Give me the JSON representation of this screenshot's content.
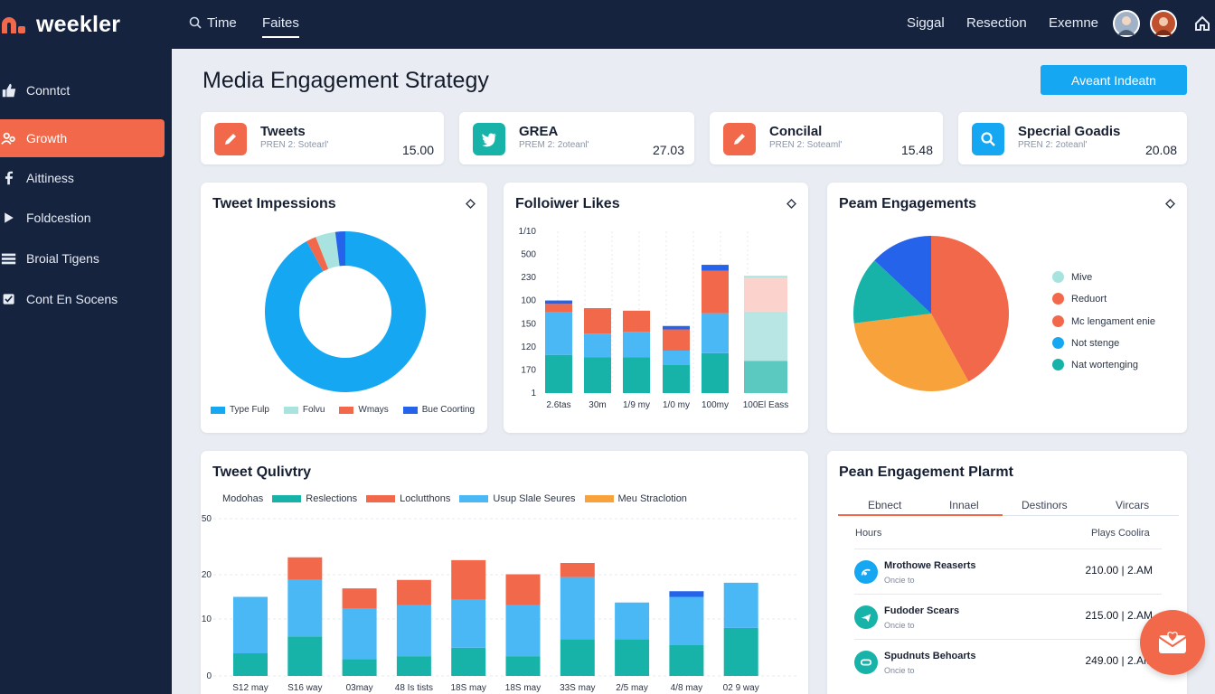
{
  "brand": {
    "name": "weekler",
    "accent": "#f2684a",
    "topbar_bg": "#15233f"
  },
  "nav": {
    "items": [
      {
        "label": "Time",
        "icon": "search-icon"
      },
      {
        "label": "Faites",
        "active": true
      },
      {
        "label": "Siggal"
      },
      {
        "label": "Resection"
      },
      {
        "label": "Exemne"
      }
    ]
  },
  "sidebar": {
    "items": [
      {
        "label": "Conntct",
        "icon": "thumbs-up-icon"
      },
      {
        "label": "Growth",
        "icon": "users-icon",
        "active": true
      },
      {
        "label": "Aittiness",
        "icon": "facebook-icon"
      },
      {
        "label": "Foldcestion",
        "icon": "play-icon"
      },
      {
        "label": "Broial Tigens",
        "icon": "list-icon"
      },
      {
        "label": "Cont En Socens",
        "icon": "check-box-icon"
      }
    ]
  },
  "main": {
    "title": "Media Engagement Strategy",
    "primary_button": "Aveant Indeatn"
  },
  "stats": [
    {
      "title": "Tweets",
      "sub": "PREN 2: Sotearl'",
      "value": "15.00",
      "icon": "pencil-icon",
      "color": "#f2684a"
    },
    {
      "title": "GREA",
      "sub": "PREM 2: 2oteanl'",
      "value": "27.03",
      "icon": "twitter-icon",
      "color": "#17b3a9"
    },
    {
      "title": "Concilal",
      "sub": "PREN 2: Soteaml'",
      "value": "15.48",
      "icon": "pencil-icon",
      "color": "#f2684a"
    },
    {
      "title": "Specrial Goadis",
      "sub": "PREN 2: 2oteanl'",
      "value": "20.08",
      "icon": "search-icon",
      "color": "#16a7f2"
    }
  ],
  "panels": {
    "impressions": {
      "title": "Tweet Impessions",
      "legend": [
        {
          "label": "Type Fulp",
          "color": "#16a7f2"
        },
        {
          "label": "Folvu",
          "color": "#a8e3e0"
        },
        {
          "label": "Wmays",
          "color": "#f2684a"
        },
        {
          "label": "Bue Coorting",
          "color": "#2563eb"
        }
      ]
    },
    "likes": {
      "title": "Folloiwer Likes"
    },
    "engagements": {
      "title": "Peam Engagements",
      "legend": [
        {
          "label": "Mive",
          "color": "#a8e3e0"
        },
        {
          "label": "Reduort",
          "color": "#f2684a"
        },
        {
          "label": "Mc lengament enie",
          "color": "#f2684a"
        },
        {
          "label": "Not stenge",
          "color": "#16a7f2"
        },
        {
          "label": "Nat wortenging",
          "color": "#17b3a9"
        }
      ]
    },
    "quality": {
      "title": "Tweet Qulivtry",
      "legend": [
        {
          "label": "Modohas",
          "color": ""
        },
        {
          "label": "Reslections",
          "color": "#17b3a9"
        },
        {
          "label": "Loclutthons",
          "color": "#f2684a"
        },
        {
          "label": "Usup Slale Seures",
          "color": "#4bb8f6"
        },
        {
          "label": "Meu Straclotion",
          "color": "#f7a23a"
        }
      ]
    },
    "planner": {
      "title": "Pean Engagement Plarmt",
      "tabs": [
        "Ebnect",
        "Innael",
        "Destinors",
        "Vircars"
      ],
      "header_left": "Hours",
      "header_right": "Plays Coolira",
      "rows": [
        {
          "title": "Mrothowe Reaserts",
          "sub": "Oncie to",
          "value": "210.00 | 2.AM",
          "icon": "signal-icon",
          "color": "#16a7f2"
        },
        {
          "title": "Fudoder Scears",
          "sub": "Oncie to",
          "value": "215.00 | 2.AM",
          "icon": "plane-icon",
          "color": "#17b3a9"
        },
        {
          "title": "Spudnuts Behoarts",
          "sub": "Oncie to",
          "value": "249.00 | 2.AM",
          "icon": "link-icon",
          "color": "#17b3a9"
        }
      ]
    }
  },
  "chart_data": [
    {
      "type": "pie",
      "title": "Tweet Impessions",
      "donut": true,
      "slices": [
        {
          "name": "Type Fulp",
          "value": 92,
          "color": "#16a7f2"
        },
        {
          "name": "Wmays",
          "value": 2,
          "color": "#f2684a"
        },
        {
          "name": "Folvu",
          "value": 4,
          "color": "#a8e3e0"
        },
        {
          "name": "Bue Coorting",
          "value": 2,
          "color": "#2563eb"
        }
      ]
    },
    {
      "type": "bar",
      "stacked": true,
      "title": "Folloiwer Likes",
      "categories": [
        "2.6tas",
        "30m",
        "1/9 my",
        "1/0 my",
        "100my",
        "100El Eass"
      ],
      "y_ticks": [
        "1",
        "170",
        "120",
        "150",
        "100",
        "230",
        "500",
        "1/10"
      ],
      "series": [
        {
          "color": "#17b3a9",
          "values": [
            45,
            42,
            42,
            33,
            47,
            38
          ]
        },
        {
          "color": "#4bb8f6",
          "values": [
            50,
            28,
            30,
            17,
            47,
            0
          ]
        },
        {
          "color": "#f2684a",
          "values": [
            10,
            30,
            25,
            25,
            50,
            0
          ]
        },
        {
          "color": "#2563eb",
          "values": [
            4,
            0,
            0,
            4,
            7,
            0
          ]
        }
      ],
      "faded_last": {
        "values": [
          38,
          58,
          40,
          2
        ],
        "colors": [
          "#5bc9c0",
          "#b7e6e4",
          "#fbd3cc",
          "#a8e3e0"
        ]
      }
    },
    {
      "type": "pie",
      "title": "Peam Engagements",
      "slices": [
        {
          "name": "Reduort",
          "value": 42,
          "color": "#f2684a"
        },
        {
          "name": "Mc lengament enie",
          "value": 31,
          "color": "#f7a23a"
        },
        {
          "name": "Nat wortenging",
          "value": 14,
          "color": "#17b3a9"
        },
        {
          "name": "Not stenge",
          "value": 13,
          "color": "#2563eb"
        }
      ]
    },
    {
      "type": "bar",
      "stacked": true,
      "title": "Tweet Qulivtry",
      "categories": [
        "S12 may",
        "S16 way",
        "03may",
        "48 Is tists",
        "18S may",
        "18S may",
        "33S may",
        "2/5 may",
        "4/8 may",
        "02 9 way"
      ],
      "y_ticks": [
        "0",
        "10",
        "20",
        "50"
      ],
      "ylim": [
        0,
        56
      ],
      "series": [
        {
          "name": "Reslections",
          "color": "#17b3a9",
          "values": [
            8,
            14,
            6,
            7,
            10,
            7,
            13,
            13,
            11,
            17
          ]
        },
        {
          "name": "Usup Slale Seures",
          "color": "#4bb8f6",
          "values": [
            20,
            20,
            18,
            18,
            17,
            18,
            22,
            13,
            17,
            16
          ]
        },
        {
          "name": "Loclutthons",
          "color": "#f2684a",
          "values": [
            0,
            8,
            7,
            9,
            14,
            11,
            5,
            0,
            0,
            0
          ]
        },
        {
          "name": "Meu Straclotion",
          "color": "#2563eb",
          "values": [
            0,
            0,
            0,
            0,
            0,
            0,
            0,
            0,
            2,
            0
          ]
        }
      ]
    }
  ]
}
